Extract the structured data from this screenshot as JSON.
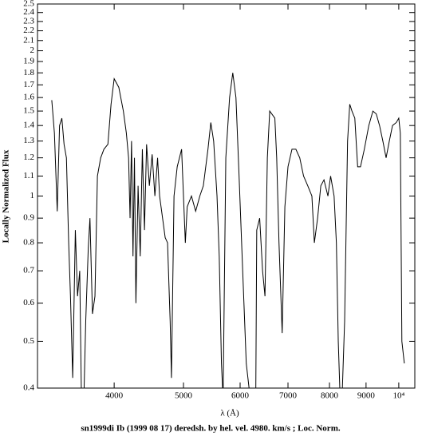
{
  "chart_data": {
    "type": "line",
    "title": "sn1999di Ib (1999 08 17) deredsh. by hel. vel.  4980. km/s ;  Loc. Norm.",
    "x_label": "λ (Å)",
    "y_label": "Locally Normalized Flux",
    "xscale": "log",
    "yscale": "log",
    "color": "#000000",
    "xlim": [
      3125,
      10530
    ],
    "ylim": [
      0.4,
      2.5
    ],
    "xticks": [
      4000,
      5000,
      6000,
      7000,
      8000,
      9000,
      {
        "value": 10000,
        "label": "10⁴"
      }
    ],
    "yticks": [
      0.4,
      0.5,
      0.6,
      0.7,
      0.8,
      0.9,
      1,
      1.1,
      1.2,
      1.3,
      1.4,
      1.5,
      1.6,
      1.7,
      1.8,
      1.9,
      2,
      2.1,
      2.2,
      2.3,
      2.4,
      2.5
    ],
    "x": [
      3272,
      3300,
      3330,
      3355,
      3380,
      3404,
      3430,
      3455,
      3475,
      3500,
      3530,
      3555,
      3580,
      3600,
      3625,
      3650,
      3680,
      3700,
      3730,
      3760,
      3790,
      3830,
      3870,
      3920,
      3960,
      4000,
      4060,
      4120,
      4160,
      4190,
      4210,
      4230,
      4250,
      4270,
      4290,
      4320,
      4350,
      4380,
      4410,
      4440,
      4480,
      4520,
      4560,
      4600,
      4630,
      4714,
      4750,
      4790,
      4810,
      4850,
      4900,
      4970,
      5030,
      5060,
      5130,
      5200,
      5270,
      5330,
      5410,
      5460,
      5510,
      5570,
      5610,
      5650,
      5680,
      5730,
      5800,
      5860,
      5920,
      5980,
      6050,
      6120,
      6200,
      6250,
      6310,
      6330,
      6390,
      6450,
      6500,
      6550,
      6600,
      6710,
      6750,
      6800,
      6870,
      6930,
      7000,
      7090,
      7180,
      7270,
      7360,
      7460,
      7560,
      7620,
      7700,
      7780,
      7860,
      7960,
      8030,
      8120,
      8180,
      8230,
      8280,
      8330,
      8400,
      8480,
      8540,
      8600,
      8680,
      8760,
      8840,
      8950,
      9080,
      9200,
      9300,
      9400,
      9500,
      9600,
      9700,
      9800,
      9920,
      10000,
      10050,
      10100,
      10180
    ],
    "values": [
      1.58,
      1.35,
      0.93,
      1.4,
      1.45,
      1.28,
      1.2,
      0.8,
      0.62,
      0.42,
      0.85,
      0.62,
      0.7,
      0.38,
      0.36,
      0.55,
      0.78,
      0.9,
      0.57,
      0.62,
      1.1,
      1.2,
      1.25,
      1.28,
      1.55,
      1.75,
      1.68,
      1.5,
      1.35,
      1.2,
      0.9,
      1.3,
      0.75,
      1.2,
      0.6,
      1.05,
      0.75,
      1.25,
      0.85,
      1.28,
      1.05,
      1.22,
      1.0,
      1.2,
      1.0,
      0.82,
      0.8,
      0.55,
      0.42,
      1.0,
      1.15,
      1.25,
      0.8,
      0.95,
      1.0,
      0.93,
      1.0,
      1.05,
      1.25,
      1.42,
      1.3,
      1.0,
      0.75,
      0.45,
      0.38,
      1.2,
      1.6,
      1.8,
      1.6,
      1.1,
      0.7,
      0.45,
      0.38,
      0.38,
      0.38,
      0.85,
      0.9,
      0.7,
      0.62,
      1.2,
      1.5,
      1.45,
      1.2,
      0.8,
      0.52,
      0.95,
      1.15,
      1.25,
      1.25,
      1.2,
      1.1,
      1.05,
      1.0,
      0.8,
      0.9,
      1.05,
      1.08,
      1.0,
      1.1,
      1.0,
      0.8,
      0.5,
      0.38,
      0.38,
      0.55,
      1.3,
      1.55,
      1.5,
      1.45,
      1.15,
      1.15,
      1.25,
      1.4,
      1.5,
      1.48,
      1.4,
      1.3,
      1.2,
      1.3,
      1.4,
      1.42,
      1.45,
      1.35,
      0.5,
      0.45
    ]
  }
}
